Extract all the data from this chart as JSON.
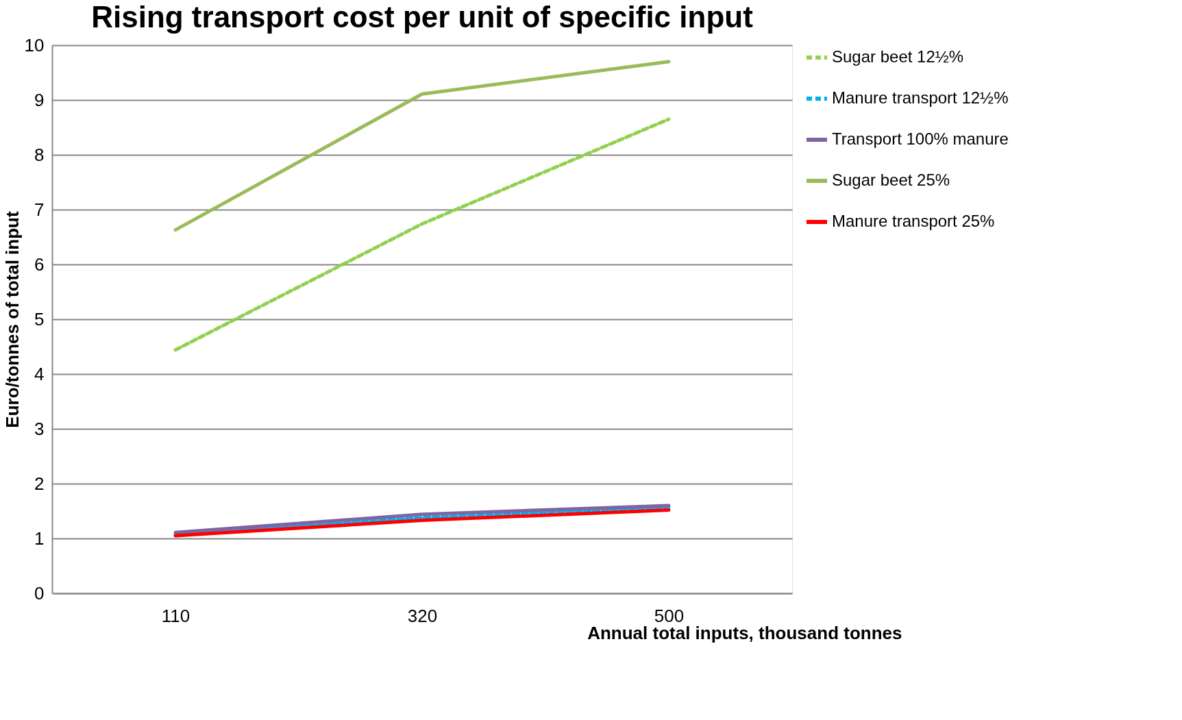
{
  "chart_data": {
    "type": "line",
    "title": "Rising transport cost per unit of specific input",
    "xlabel": "Annual total inputs, thousand tonnes",
    "ylabel": "Euro/tonnes of total input",
    "categories": [
      "110",
      "320",
      "500"
    ],
    "series": [
      {
        "name": "Sugar beet 12½%",
        "color": "#92d050",
        "line_style": "dashed",
        "values": [
          4.44,
          6.74,
          8.65
        ]
      },
      {
        "name": "Manure transport 12½%",
        "color": "#00b0f0",
        "line_style": "dashed",
        "values": [
          1.08,
          1.38,
          1.57
        ]
      },
      {
        "name": "Transport 100% manure",
        "color": "#8064a2",
        "line_style": "solid",
        "values": [
          1.11,
          1.44,
          1.6
        ]
      },
      {
        "name": "Sugar beet 25%",
        "color": "#9bbb59",
        "line_style": "solid",
        "values": [
          6.63,
          9.11,
          9.7
        ]
      },
      {
        "name": "Manure transport 25%",
        "color": "#ff0000",
        "line_style": "solid",
        "values": [
          1.05,
          1.33,
          1.52
        ]
      }
    ],
    "ylim": [
      0,
      10
    ],
    "yticks": [
      0,
      1,
      2,
      3,
      4,
      5,
      6,
      7,
      8,
      9,
      10
    ],
    "grid": "y",
    "legend": "right",
    "marker": "none"
  }
}
